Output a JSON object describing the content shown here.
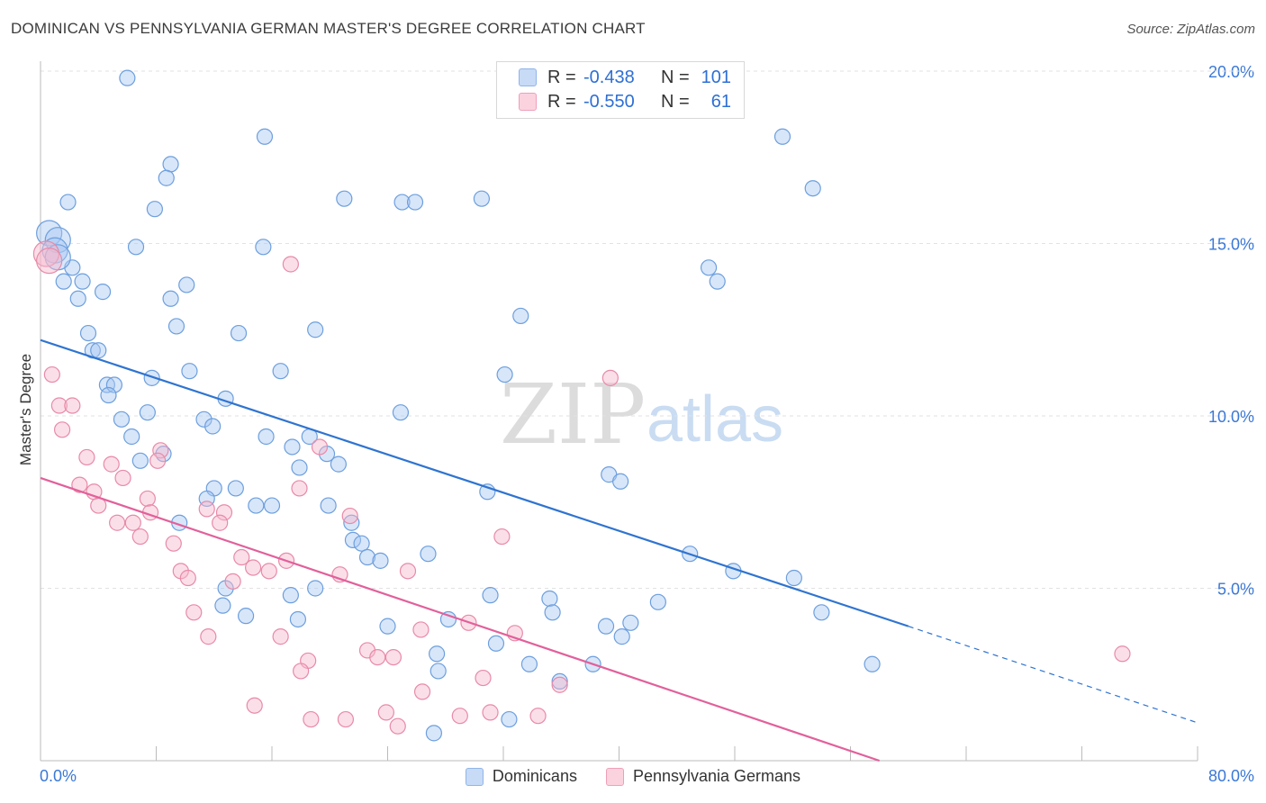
{
  "title": "DOMINICAN VS PENNSYLVANIA GERMAN MASTER'S DEGREE CORRELATION CHART",
  "source": "Source: ZipAtlas.com",
  "watermark": {
    "left": "ZIP",
    "right": "atlas"
  },
  "legend_inset": [
    {
      "r_label": "R =",
      "r_value": "-0.438",
      "n_label": "N =",
      "n_value": "101",
      "color": "#a9c8f2"
    },
    {
      "r_label": "R =",
      "r_value": "-0.550",
      "n_label": "N =",
      "n_value": "61",
      "color": "#f6b8cc"
    }
  ],
  "chart_data": {
    "type": "scatter",
    "ylabel": "Master's Degree",
    "xlabel": "",
    "xlim": [
      0,
      80
    ],
    "ylim": [
      0,
      20.5
    ],
    "x_ticks": [
      "0.0%",
      "80.0%"
    ],
    "y_ticks": [
      {
        "value": 5,
        "label": "5.0%"
      },
      {
        "value": 10,
        "label": "10.0%"
      },
      {
        "value": 15,
        "label": "15.0%"
      },
      {
        "value": 20,
        "label": "20.0%"
      }
    ],
    "grid": true,
    "legend_placement": "bottom",
    "series": [
      {
        "name": "Dominicans",
        "color": "#a9c8f2",
        "stroke": "#6c9fde",
        "trend": {
          "x0": 0,
          "y0": 12.2,
          "x1": 60,
          "y1": 3.9,
          "dash_to_x": 80,
          "dash_to_y": 1.1,
          "color": "#2f74d0"
        },
        "points": [
          [
            0.6,
            15.3
          ],
          [
            1.2,
            15.1
          ],
          [
            6.0,
            19.8
          ],
          [
            15.5,
            18.1
          ],
          [
            9.0,
            17.3
          ],
          [
            8.7,
            16.9
          ],
          [
            1.9,
            16.2
          ],
          [
            7.9,
            16.0
          ],
          [
            21.0,
            16.3
          ],
          [
            25.0,
            16.2
          ],
          [
            25.9,
            16.2
          ],
          [
            30.5,
            16.3
          ],
          [
            53.4,
            16.6
          ],
          [
            51.3,
            18.1
          ],
          [
            6.6,
            14.9
          ],
          [
            15.4,
            14.9
          ],
          [
            2.2,
            14.3
          ],
          [
            1.6,
            13.9
          ],
          [
            2.9,
            13.9
          ],
          [
            4.3,
            13.6
          ],
          [
            2.6,
            13.4
          ],
          [
            9.0,
            13.4
          ],
          [
            10.1,
            13.8
          ],
          [
            46.2,
            14.3
          ],
          [
            46.8,
            13.9
          ],
          [
            33.2,
            12.9
          ],
          [
            3.3,
            12.4
          ],
          [
            9.4,
            12.6
          ],
          [
            13.7,
            12.4
          ],
          [
            19.0,
            12.5
          ],
          [
            3.6,
            11.9
          ],
          [
            4.0,
            11.9
          ],
          [
            7.7,
            11.1
          ],
          [
            10.3,
            11.3
          ],
          [
            16.6,
            11.3
          ],
          [
            32.1,
            11.2
          ],
          [
            4.6,
            10.9
          ],
          [
            5.1,
            10.9
          ],
          [
            4.7,
            10.6
          ],
          [
            7.4,
            10.1
          ],
          [
            12.8,
            10.5
          ],
          [
            24.9,
            10.1
          ],
          [
            5.6,
            9.9
          ],
          [
            11.3,
            9.9
          ],
          [
            11.9,
            9.7
          ],
          [
            6.3,
            9.4
          ],
          [
            15.6,
            9.4
          ],
          [
            17.4,
            9.1
          ],
          [
            18.6,
            9.4
          ],
          [
            6.9,
            8.7
          ],
          [
            8.5,
            8.9
          ],
          [
            19.8,
            8.9
          ],
          [
            20.6,
            8.6
          ],
          [
            17.9,
            8.5
          ],
          [
            39.3,
            8.3
          ],
          [
            40.1,
            8.1
          ],
          [
            12.0,
            7.9
          ],
          [
            13.5,
            7.9
          ],
          [
            30.9,
            7.8
          ],
          [
            11.5,
            7.6
          ],
          [
            14.9,
            7.4
          ],
          [
            16.0,
            7.4
          ],
          [
            19.9,
            7.4
          ],
          [
            9.6,
            6.9
          ],
          [
            21.5,
            6.9
          ],
          [
            21.6,
            6.4
          ],
          [
            22.2,
            6.3
          ],
          [
            22.6,
            5.9
          ],
          [
            23.5,
            5.8
          ],
          [
            26.8,
            6.0
          ],
          [
            44.9,
            6.0
          ],
          [
            47.9,
            5.5
          ],
          [
            52.1,
            5.3
          ],
          [
            12.8,
            5.0
          ],
          [
            12.6,
            4.5
          ],
          [
            17.3,
            4.8
          ],
          [
            19.0,
            5.0
          ],
          [
            14.2,
            4.2
          ],
          [
            17.8,
            4.1
          ],
          [
            31.1,
            4.8
          ],
          [
            35.2,
            4.7
          ],
          [
            35.4,
            4.3
          ],
          [
            42.7,
            4.6
          ],
          [
            54.0,
            4.3
          ],
          [
            24.0,
            3.9
          ],
          [
            28.2,
            4.1
          ],
          [
            39.1,
            3.9
          ],
          [
            40.8,
            4.0
          ],
          [
            31.5,
            3.4
          ],
          [
            40.2,
            3.6
          ],
          [
            27.4,
            3.1
          ],
          [
            27.5,
            2.6
          ],
          [
            33.8,
            2.8
          ],
          [
            35.9,
            2.3
          ],
          [
            38.2,
            2.8
          ],
          [
            57.5,
            2.8
          ],
          [
            32.4,
            1.2
          ],
          [
            27.2,
            0.8
          ],
          [
            1.0,
            14.8
          ],
          [
            1.2,
            14.6
          ]
        ]
      },
      {
        "name": "Pennsylvania Germans",
        "color": "#f6b8cc",
        "stroke": "#e88aa8",
        "trend": {
          "x0": 0,
          "y0": 8.2,
          "x1": 58,
          "y1": 0.0,
          "color": "#e2609a"
        },
        "points": [
          [
            0.4,
            14.7
          ],
          [
            17.3,
            14.4
          ],
          [
            39.4,
            11.1
          ],
          [
            0.8,
            11.2
          ],
          [
            1.3,
            10.3
          ],
          [
            2.2,
            10.3
          ],
          [
            1.5,
            9.6
          ],
          [
            3.2,
            8.8
          ],
          [
            4.9,
            8.6
          ],
          [
            5.7,
            8.2
          ],
          [
            8.3,
            9.0
          ],
          [
            8.1,
            8.7
          ],
          [
            19.3,
            9.1
          ],
          [
            2.7,
            8.0
          ],
          [
            3.7,
            7.8
          ],
          [
            7.4,
            7.6
          ],
          [
            17.9,
            7.9
          ],
          [
            4.0,
            7.4
          ],
          [
            7.6,
            7.2
          ],
          [
            11.5,
            7.3
          ],
          [
            12.7,
            7.2
          ],
          [
            21.4,
            7.1
          ],
          [
            5.3,
            6.9
          ],
          [
            6.4,
            6.9
          ],
          [
            12.4,
            6.9
          ],
          [
            6.9,
            6.5
          ],
          [
            9.2,
            6.3
          ],
          [
            31.9,
            6.5
          ],
          [
            13.9,
            5.9
          ],
          [
            17.0,
            5.8
          ],
          [
            9.7,
            5.5
          ],
          [
            10.2,
            5.3
          ],
          [
            13.3,
            5.2
          ],
          [
            14.7,
            5.6
          ],
          [
            15.8,
            5.5
          ],
          [
            20.7,
            5.4
          ],
          [
            25.4,
            5.5
          ],
          [
            10.6,
            4.3
          ],
          [
            11.6,
            3.6
          ],
          [
            16.6,
            3.6
          ],
          [
            29.6,
            4.0
          ],
          [
            32.8,
            3.7
          ],
          [
            26.3,
            3.8
          ],
          [
            18.5,
            2.9
          ],
          [
            18.0,
            2.6
          ],
          [
            22.6,
            3.2
          ],
          [
            23.3,
            3.0
          ],
          [
            24.4,
            3.0
          ],
          [
            30.6,
            2.4
          ],
          [
            26.4,
            2.0
          ],
          [
            14.8,
            1.6
          ],
          [
            18.7,
            1.2
          ],
          [
            21.1,
            1.2
          ],
          [
            23.9,
            1.4
          ],
          [
            24.7,
            1.0
          ],
          [
            29.0,
            1.3
          ],
          [
            31.1,
            1.4
          ],
          [
            34.4,
            1.3
          ],
          [
            35.9,
            2.2
          ],
          [
            74.8,
            3.1
          ],
          [
            0.6,
            14.5
          ]
        ]
      }
    ]
  }
}
